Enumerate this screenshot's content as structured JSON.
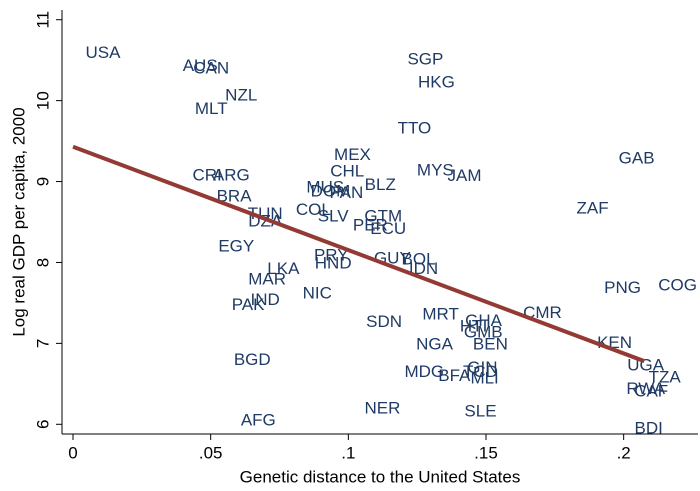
{
  "chart_data": {
    "type": "scatter",
    "xlabel": "Genetic distance to the United States",
    "ylabel": "Log real GDP per capita, 2000",
    "xlim": [
      -0.004,
      0.227
    ],
    "ylim": [
      5.88,
      11.12
    ],
    "xticks": [
      0,
      {
        "value": 0.05,
        "label": ".05"
      },
      {
        "value": 0.1,
        "label": ".1"
      },
      {
        "value": 0.15,
        "label": ".15"
      },
      {
        "value": 0.2,
        "label": ".2"
      }
    ],
    "yticks": [
      6,
      7,
      8,
      9,
      10,
      11
    ],
    "color": "#1f3a64",
    "labels": [
      "USA",
      "AUS",
      "CAN",
      "NZL",
      "MLT",
      "SGP",
      "HKG",
      "TTO",
      "MEX",
      "CHL",
      "MYS",
      "JAM",
      "GAB",
      "CRI",
      "ARG",
      "BRA",
      "MUS",
      "DOM",
      "PAN",
      "BLZ",
      "ZAF",
      "COL",
      "TUN",
      "DZA",
      "SLV",
      "GTM",
      "PER",
      "ECU",
      "EGY",
      "PRY",
      "HND",
      "GUY",
      "BOL",
      "IDN",
      "LKA",
      "MAR",
      "PNG",
      "COG",
      "PAK",
      "IND",
      "NIC",
      "CMR",
      "MRT",
      "GHA",
      "SDN",
      "HTI",
      "GMB",
      "NGA",
      "BEN",
      "KEN",
      "BGD",
      "UGA",
      "TZA",
      "RWA",
      "CAF",
      "MDG",
      "BFA",
      "GIN",
      "TCD",
      "MLI",
      "NER",
      "SLE",
      "AFG",
      "BDI"
    ],
    "x": [
      0.0109,
      0.0462,
      0.0502,
      0.0611,
      0.0502,
      0.128,
      0.132,
      0.124,
      0.1015,
      0.0996,
      0.1316,
      0.1422,
      0.2047,
      0.0487,
      0.0575,
      0.0585,
      0.0916,
      0.0935,
      0.0993,
      0.1116,
      0.1887,
      0.0873,
      0.0698,
      0.0698,
      0.0945,
      0.1127,
      0.108,
      0.1145,
      0.0593,
      0.0938,
      0.0945,
      0.116,
      0.1255,
      0.1273,
      0.0764,
      0.0705,
      0.1996,
      0.2196,
      0.0636,
      0.0698,
      0.0887,
      0.1705,
      0.1335,
      0.1491,
      0.113,
      0.1455,
      0.149,
      0.1313,
      0.1516,
      0.1967,
      0.0651,
      0.208,
      0.2149,
      0.208,
      0.21,
      0.1276,
      0.1385,
      0.1487,
      0.148,
      0.1495,
      0.1124,
      0.148,
      0.0673,
      0.2091
    ],
    "y": [
      10.58,
      10.42,
      10.39,
      10.06,
      9.89,
      10.5,
      10.22,
      9.65,
      9.32,
      9.12,
      9.13,
      9.06,
      9.28,
      9.07,
      9.07,
      8.81,
      8.92,
      8.87,
      8.85,
      8.95,
      8.66,
      8.64,
      8.59,
      8.5,
      8.56,
      8.56,
      8.45,
      8.41,
      8.19,
      8.08,
      7.98,
      8.04,
      8.03,
      7.91,
      7.91,
      7.78,
      7.68,
      7.71,
      7.47,
      7.53,
      7.61,
      7.37,
      7.35,
      7.27,
      7.26,
      7.2,
      7.13,
      6.98,
      6.98,
      7.0,
      6.79,
      6.72,
      6.57,
      6.43,
      6.4,
      6.64,
      6.59,
      6.69,
      6.64,
      6.56,
      6.19,
      6.15,
      6.04,
      5.94
    ],
    "fit": {
      "x": [
        0,
        0.2075
      ],
      "y": [
        9.43,
        6.78
      ],
      "color": "#943a35"
    }
  }
}
